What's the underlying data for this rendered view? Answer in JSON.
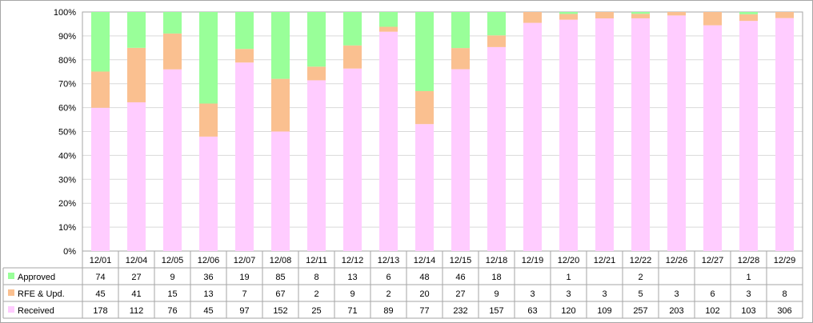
{
  "chart_data": {
    "type": "bar",
    "stacked": "percent",
    "categories": [
      "12/01",
      "12/04",
      "12/05",
      "12/06",
      "12/07",
      "12/08",
      "12/11",
      "12/12",
      "12/13",
      "12/14",
      "12/15",
      "12/18",
      "12/19",
      "12/20",
      "12/21",
      "12/22",
      "12/26",
      "12/27",
      "12/28",
      "12/29"
    ],
    "series": [
      {
        "name": "Approved",
        "color": "#99ff99",
        "values": [
          74,
          27,
          9,
          36,
          19,
          85,
          8,
          13,
          6,
          48,
          46,
          18,
          null,
          1,
          null,
          2,
          null,
          null,
          1,
          null
        ]
      },
      {
        "name": "RFE & Upd.",
        "color": "#fac090",
        "values": [
          45,
          41,
          15,
          13,
          7,
          67,
          2,
          9,
          2,
          20,
          27,
          9,
          3,
          3,
          3,
          5,
          3,
          6,
          3,
          8
        ]
      },
      {
        "name": "Received",
        "color": "#ffccff",
        "values": [
          178,
          112,
          76,
          45,
          97,
          152,
          25,
          71,
          89,
          77,
          232,
          157,
          63,
          120,
          109,
          257,
          203,
          102,
          103,
          306
        ]
      }
    ],
    "yticks": [
      "0%",
      "10%",
      "20%",
      "30%",
      "40%",
      "50%",
      "60%",
      "70%",
      "80%",
      "90%",
      "100%"
    ],
    "ylim": [
      0,
      100
    ],
    "grid": true,
    "legend": "data-table-left"
  }
}
